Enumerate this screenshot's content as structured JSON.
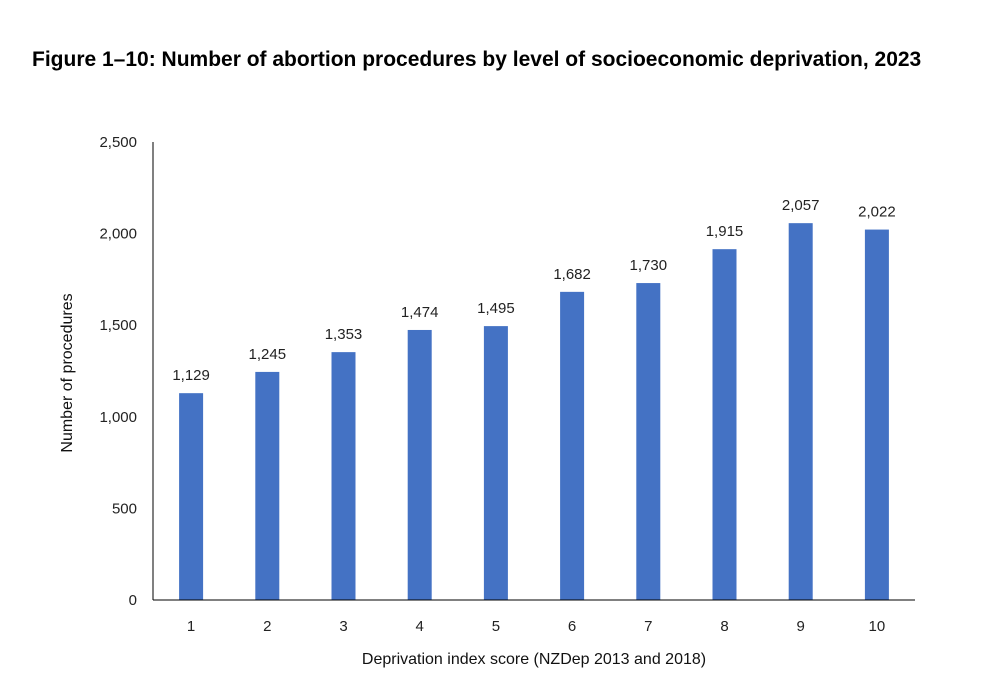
{
  "figure": {
    "title": "Figure 1–10: Number of abortion procedures by level of socioeconomic deprivation, 2023"
  },
  "chart_data": {
    "type": "bar",
    "title": "Figure 1–10: Number of abortion procedures by level of socioeconomic deprivation, 2023",
    "xlabel": "Deprivation index score (NZDep 2013 and 2018)",
    "ylabel": "Number of procedures",
    "categories": [
      "1",
      "2",
      "3",
      "4",
      "5",
      "6",
      "7",
      "8",
      "9",
      "10"
    ],
    "values": [
      1129,
      1245,
      1353,
      1474,
      1495,
      1682,
      1730,
      1915,
      2057,
      2022
    ],
    "data_labels": [
      "1,129",
      "1,245",
      "1,353",
      "1,474",
      "1,495",
      "1,682",
      "1,730",
      "1,915",
      "2,057",
      "2,022"
    ],
    "ylim": [
      0,
      2500
    ],
    "yticks": [
      0,
      500,
      1000,
      1500,
      2000,
      2500
    ],
    "ytick_labels": [
      "0",
      "500",
      "1,000",
      "1,500",
      "2,000",
      "2,500"
    ],
    "bar_color": "#4472C4",
    "axis_color": "#000000",
    "grid": false,
    "legend": false
  }
}
